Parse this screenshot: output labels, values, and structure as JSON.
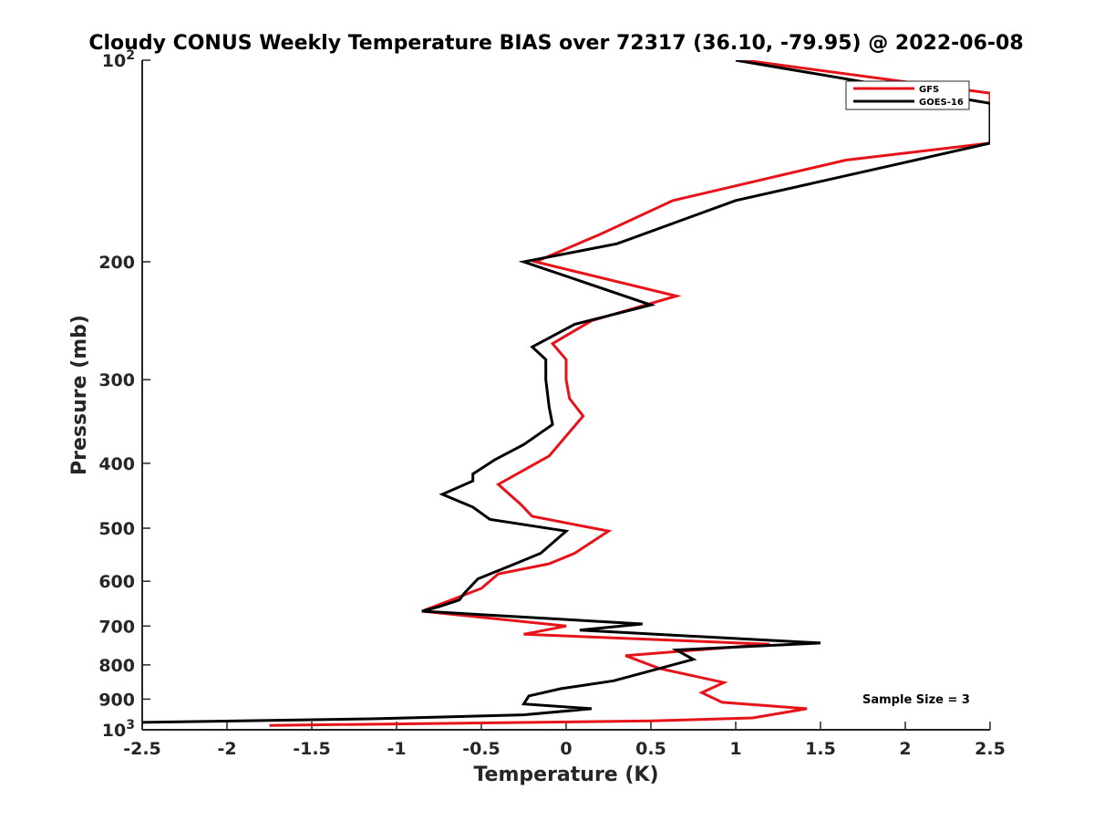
{
  "chart_data": {
    "type": "line",
    "title": "Cloudy CONUS Weekly Temperature BIAS over 72317 (36.10, -79.95) @ 2022-06-08",
    "xlabel": "Temperature (K)",
    "ylabel": "Pressure (mb)",
    "xlim": [
      -2.5,
      2.5
    ],
    "ylim": [
      100,
      1000
    ],
    "y_scale": "log",
    "y_reversed": true,
    "xticks": [
      "-2.5",
      "-2",
      "-1.5",
      "-1",
      "-0.5",
      "0",
      "0.5",
      "1",
      "1.5",
      "2",
      "2.5"
    ],
    "yticks": [
      {
        "value": 100,
        "base": "10",
        "exp": "2"
      },
      {
        "value": 200,
        "label": "200"
      },
      {
        "value": 300,
        "label": "300"
      },
      {
        "value": 400,
        "label": "400"
      },
      {
        "value": 500,
        "label": "500"
      },
      {
        "value": 600,
        "label": "600"
      },
      {
        "value": 700,
        "label": "700"
      },
      {
        "value": 800,
        "label": "800"
      },
      {
        "value": 900,
        "label": "900"
      },
      {
        "value": 1000,
        "base": "10",
        "exp": "3"
      }
    ],
    "legend_position": "top-right",
    "annotation": "Sample Size = 3",
    "series": [
      {
        "name": "GFS",
        "color": "#e6141a",
        "points": [
          [
            1.05,
            100
          ],
          [
            2.5,
            112
          ],
          [
            2.5,
            133
          ],
          [
            1.65,
            141
          ],
          [
            0.63,
            162
          ],
          [
            0.2,
            182
          ],
          [
            -0.18,
            200
          ],
          [
            0.65,
            225
          ],
          [
            0.15,
            245
          ],
          [
            -0.08,
            265
          ],
          [
            0.0,
            280
          ],
          [
            0.0,
            300
          ],
          [
            0.02,
            320
          ],
          [
            0.1,
            340
          ],
          [
            -0.1,
            390
          ],
          [
            -0.4,
            430
          ],
          [
            -0.27,
            460
          ],
          [
            -0.2,
            480
          ],
          [
            0.25,
            505
          ],
          [
            0.05,
            545
          ],
          [
            -0.1,
            565
          ],
          [
            -0.4,
            585
          ],
          [
            -0.5,
            615
          ],
          [
            -0.85,
            665
          ],
          [
            0.0,
            700
          ],
          [
            -0.25,
            720
          ],
          [
            1.2,
            745
          ],
          [
            0.35,
            775
          ],
          [
            0.55,
            810
          ],
          [
            0.93,
            850
          ],
          [
            0.8,
            880
          ],
          [
            0.92,
            910
          ],
          [
            1.42,
            930
          ],
          [
            1.1,
            960
          ],
          [
            0.5,
            970
          ],
          [
            -1.75,
            985
          ]
        ]
      },
      {
        "name": "GOES-16",
        "color": "#000000",
        "points": [
          [
            1.0,
            100
          ],
          [
            2.5,
            116
          ],
          [
            2.5,
            133
          ],
          [
            1.9,
            144
          ],
          [
            1.0,
            162
          ],
          [
            0.3,
            188
          ],
          [
            -0.25,
            200
          ],
          [
            0.5,
            232
          ],
          [
            0.05,
            248
          ],
          [
            -0.2,
            268
          ],
          [
            -0.12,
            280
          ],
          [
            -0.12,
            300
          ],
          [
            -0.1,
            330
          ],
          [
            -0.08,
            350
          ],
          [
            -0.25,
            375
          ],
          [
            -0.42,
            395
          ],
          [
            -0.55,
            415
          ],
          [
            -0.55,
            425
          ],
          [
            -0.73,
            445
          ],
          [
            -0.55,
            465
          ],
          [
            -0.45,
            485
          ],
          [
            0.0,
            505
          ],
          [
            -0.15,
            545
          ],
          [
            -0.3,
            565
          ],
          [
            -0.52,
            595
          ],
          [
            -0.6,
            625
          ],
          [
            -0.63,
            640
          ],
          [
            -0.75,
            655
          ],
          [
            -0.85,
            665
          ],
          [
            0.45,
            695
          ],
          [
            0.08,
            710
          ],
          [
            1.5,
            742
          ],
          [
            0.65,
            760
          ],
          [
            0.75,
            785
          ],
          [
            0.28,
            845
          ],
          [
            -0.03,
            868
          ],
          [
            -0.22,
            890
          ],
          [
            -0.25,
            915
          ],
          [
            0.15,
            930
          ],
          [
            -0.25,
            950
          ],
          [
            -1.15,
            963
          ],
          [
            -2.5,
            975
          ]
        ]
      }
    ]
  }
}
